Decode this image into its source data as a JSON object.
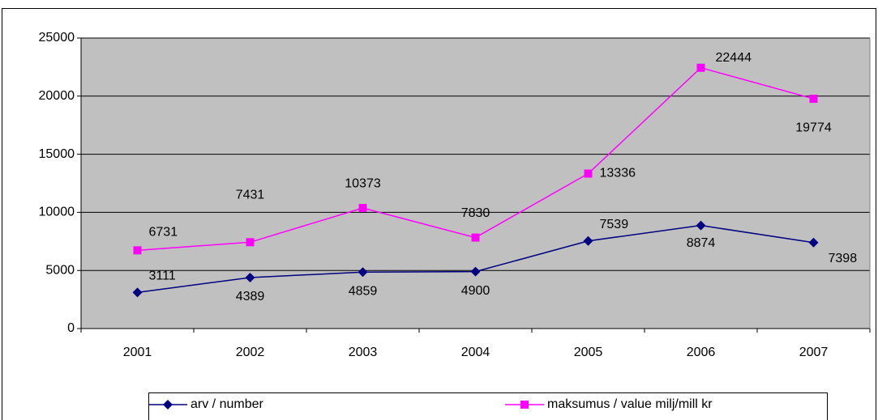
{
  "chart_data": {
    "type": "line",
    "categories": [
      "2001",
      "2002",
      "2003",
      "2004",
      "2005",
      "2006",
      "2007"
    ],
    "series": [
      {
        "name": "arv / number",
        "color": "#000080",
        "marker": "diamond",
        "values": [
          3111,
          4389,
          4859,
          4900,
          7539,
          8874,
          7398
        ]
      },
      {
        "name": "maksumus / value milj/mill kr",
        "color": "#ff00ff",
        "marker": "square",
        "values": [
          6731,
          7431,
          10373,
          7830,
          13336,
          22444,
          19774
        ]
      }
    ],
    "ylim": [
      0,
      25000
    ],
    "yticks": [
      0,
      5000,
      10000,
      15000,
      20000,
      25000
    ],
    "grid": true,
    "legend": "bottom"
  }
}
